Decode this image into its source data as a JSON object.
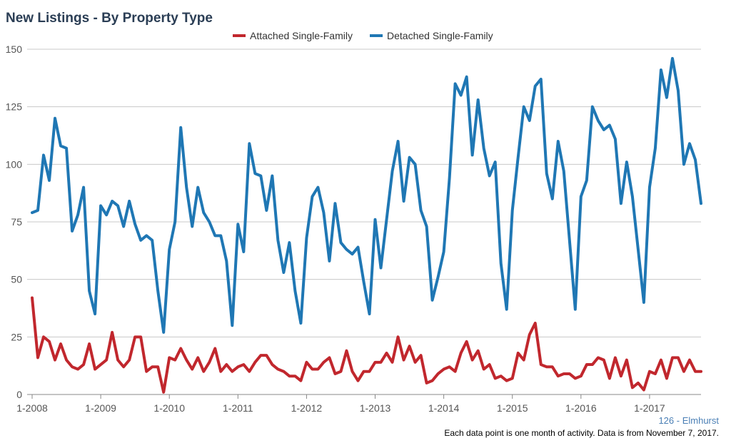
{
  "chart_data": {
    "type": "line",
    "title": "New Listings - By Property Type",
    "xlabel": "",
    "ylabel": "",
    "ylim": [
      0,
      150
    ],
    "yticks": [
      0,
      25,
      50,
      75,
      100,
      125,
      150
    ],
    "x_start": "1-2008",
    "x_tick_labels": [
      "1-2008",
      "1-2009",
      "1-2010",
      "1-2011",
      "1-2012",
      "1-2013",
      "1-2014",
      "1-2015",
      "1-2016",
      "1-2017"
    ],
    "grid": true,
    "legend_position": "top",
    "series": [
      {
        "name": "Attached Single-Family",
        "color": "#c1272d",
        "values": [
          42,
          16,
          25,
          23,
          15,
          22,
          15,
          12,
          11,
          13,
          22,
          11,
          13,
          15,
          27,
          15,
          12,
          15,
          25,
          25,
          10,
          12,
          12,
          1,
          16,
          15,
          20,
          15,
          11,
          16,
          10,
          14,
          20,
          10,
          13,
          10,
          12,
          13,
          10,
          14,
          17,
          17,
          13,
          11,
          10,
          8,
          8,
          6,
          14,
          11,
          11,
          14,
          16,
          9,
          10,
          19,
          10,
          6,
          10,
          10,
          14,
          14,
          18,
          14,
          25,
          15,
          21,
          14,
          17,
          5,
          6,
          9,
          11,
          12,
          10,
          18,
          23,
          15,
          19,
          11,
          13,
          7,
          8,
          6,
          7,
          18,
          15,
          26,
          31,
          13,
          12,
          12,
          8,
          9,
          9,
          7,
          8,
          13,
          13,
          16,
          15,
          7,
          16,
          8,
          15,
          3,
          5,
          2,
          10,
          9,
          15,
          7,
          16,
          16,
          10,
          15,
          10,
          10
        ]
      },
      {
        "name": "Detached Single-Family",
        "color": "#1f77b4",
        "values": [
          79,
          80,
          104,
          93,
          120,
          108,
          107,
          71,
          78,
          90,
          45,
          35,
          82,
          78,
          84,
          82,
          73,
          84,
          74,
          67,
          69,
          67,
          45,
          27,
          63,
          75,
          116,
          90,
          73,
          90,
          79,
          75,
          69,
          69,
          58,
          30,
          74,
          62,
          109,
          96,
          95,
          80,
          95,
          67,
          53,
          66,
          45,
          31,
          68,
          86,
          90,
          79,
          58,
          83,
          66,
          63,
          61,
          64,
          49,
          35,
          76,
          55,
          76,
          97,
          110,
          84,
          103,
          100,
          80,
          73,
          41,
          51,
          62,
          94,
          135,
          130,
          138,
          104,
          128,
          107,
          95,
          101,
          57,
          37,
          80,
          103,
          125,
          119,
          134,
          137,
          96,
          85,
          110,
          97,
          67,
          37,
          86,
          93,
          125,
          119,
          115,
          117,
          111,
          83,
          101,
          86,
          63,
          40,
          90,
          107,
          141,
          129,
          146,
          132,
          100,
          109,
          102,
          83
        ]
      }
    ]
  },
  "source_note": "126 - Elmhurst",
  "footer_note": "Each data point is one month of activity. Data is from November 7, 2017."
}
